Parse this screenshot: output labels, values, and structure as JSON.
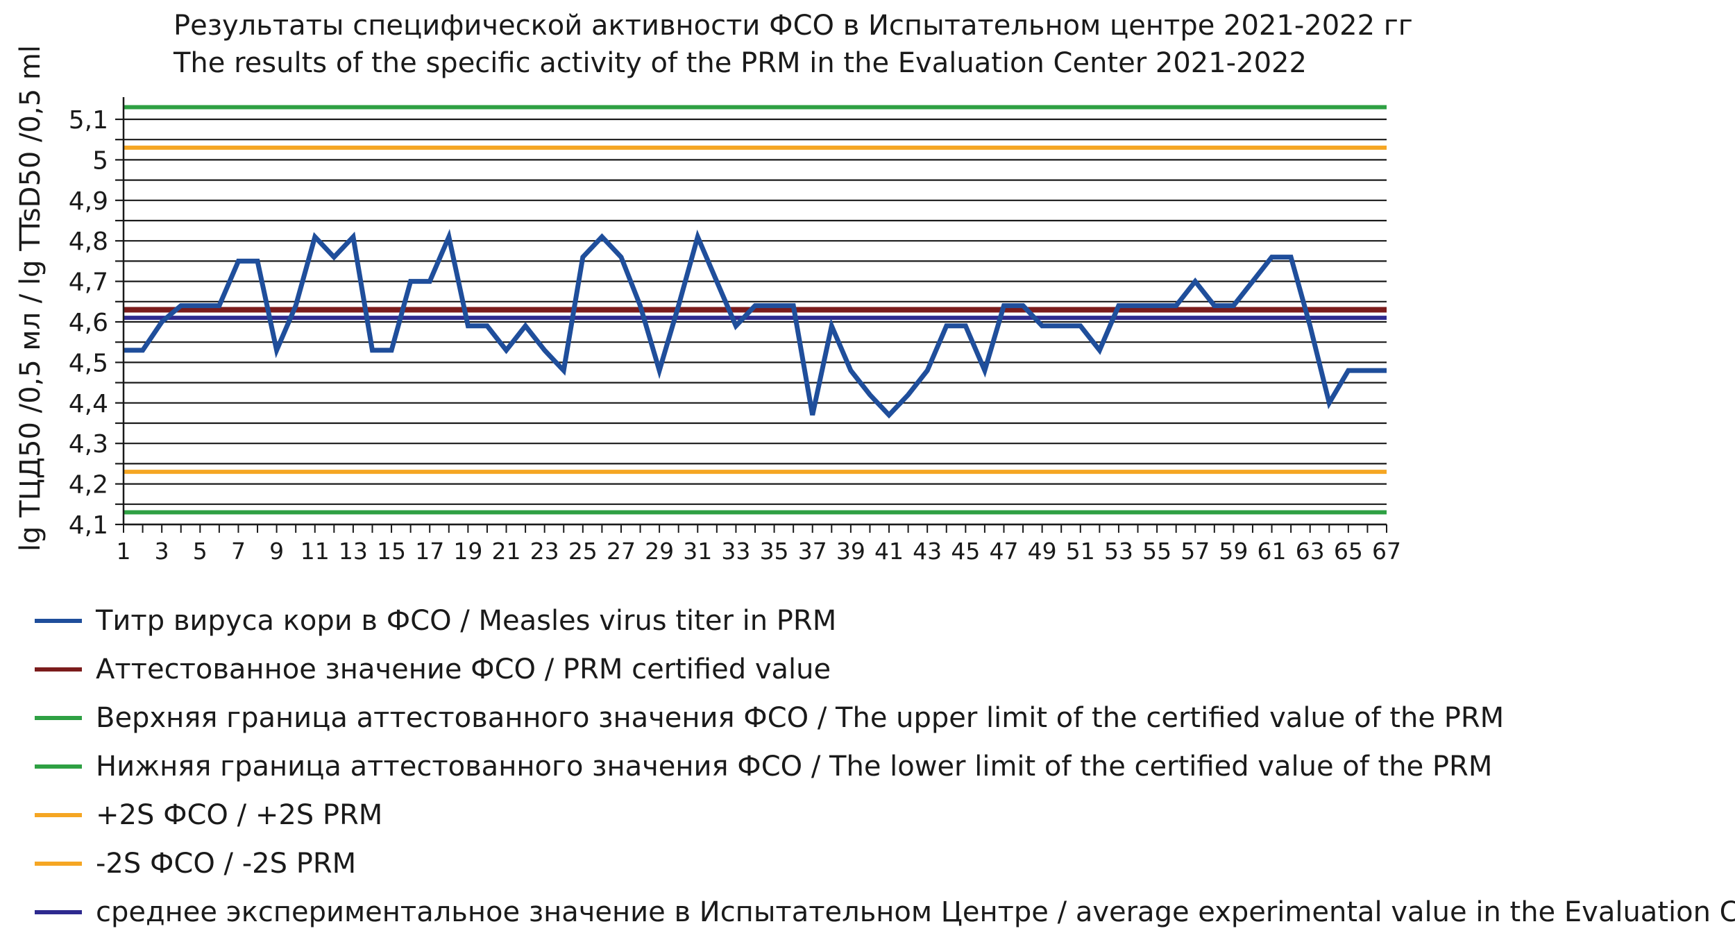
{
  "chart_data": {
    "type": "line",
    "title": "Результаты специфической активности ФСО в Испытательном центре 2021-2022 гг",
    "subtitle": "The results of the specific activity of the PRM in the Evaluation Center 2021-2022",
    "ylabel": "lg ТЦД50 /0,5 мл / lg TTsD50 /0,5 ml",
    "xlabel": "",
    "ylim": [
      4.1,
      5.15
    ],
    "yticks": [
      "4,1",
      "4,2",
      "4,3",
      "4,4",
      "4,5",
      "4,6",
      "4,7",
      "4,8",
      "4,9",
      "5",
      "5,1"
    ],
    "x_range": [
      1,
      67
    ],
    "xticks": [
      "1",
      "3",
      "5",
      "7",
      "9",
      "11",
      "13",
      "15",
      "17",
      "19",
      "21",
      "23",
      "25",
      "27",
      "29",
      "31",
      "33",
      "35",
      "37",
      "39",
      "41",
      "43",
      "45",
      "47",
      "49",
      "51",
      "53",
      "55",
      "57",
      "59",
      "61",
      "63",
      "65",
      "67"
    ],
    "grid": true,
    "legend_position": "bottom",
    "series": [
      {
        "name": "Титр вируса кори в ФСО / Measles virus titer in PRM",
        "color": "#1f4e9b",
        "x": [
          1,
          2,
          3,
          4,
          5,
          6,
          7,
          8,
          9,
          10,
          11,
          12,
          13,
          14,
          15,
          16,
          17,
          18,
          19,
          20,
          21,
          22,
          23,
          24,
          25,
          26,
          27,
          28,
          29,
          30,
          31,
          32,
          33,
          34,
          35,
          36,
          37,
          38,
          39,
          40,
          41,
          42,
          43,
          44,
          45,
          46,
          47,
          48,
          49,
          50,
          51,
          52,
          53,
          54,
          55,
          56,
          57,
          58,
          59,
          60,
          61,
          62,
          63,
          64,
          65,
          66,
          67
        ],
        "values": [
          4.53,
          4.53,
          4.6,
          4.64,
          4.64,
          4.64,
          4.75,
          4.75,
          4.53,
          4.64,
          4.81,
          4.76,
          4.81,
          4.53,
          4.53,
          4.7,
          4.7,
          4.81,
          4.59,
          4.59,
          4.53,
          4.59,
          4.53,
          4.48,
          4.76,
          4.81,
          4.76,
          4.64,
          4.48,
          4.64,
          4.81,
          4.7,
          4.59,
          4.64,
          4.64,
          4.64,
          4.37,
          4.59,
          4.48,
          4.42,
          4.37,
          4.42,
          4.48,
          4.59,
          4.59,
          4.48,
          4.64,
          4.64,
          4.59,
          4.59,
          4.59,
          4.53,
          4.64,
          4.64,
          4.64,
          4.64,
          4.7,
          4.64,
          4.64,
          4.7,
          4.76,
          4.76,
          4.59,
          4.4,
          4.48,
          4.48,
          4.48
        ]
      },
      {
        "name": "Аттестованное значение ФСО / PRM certified value",
        "color": "#7b1c1c",
        "values": [
          4.63
        ]
      },
      {
        "name": "Верхняя граница аттестованного значения ФСО / The upper limit of the certified value of the PRM",
        "color": "#2ea043",
        "values": [
          5.13
        ]
      },
      {
        "name": "Нижняя граница аттестованного значения ФСО / The lower limit of the certified value of the PRM",
        "color": "#2ea043",
        "values": [
          4.13
        ]
      },
      {
        "name": "+2S ФСО / +2S PRM",
        "color": "#f5a623",
        "values": [
          5.03
        ]
      },
      {
        "name": "-2S ФСО / -2S PRM",
        "color": "#f5a623",
        "values": [
          4.23
        ]
      },
      {
        "name": "среднее экспериментальное значение в Испытательном Центре / average experimental value in the Evaluation Center",
        "color": "#2e2a8f",
        "values": [
          4.61
        ]
      }
    ]
  }
}
